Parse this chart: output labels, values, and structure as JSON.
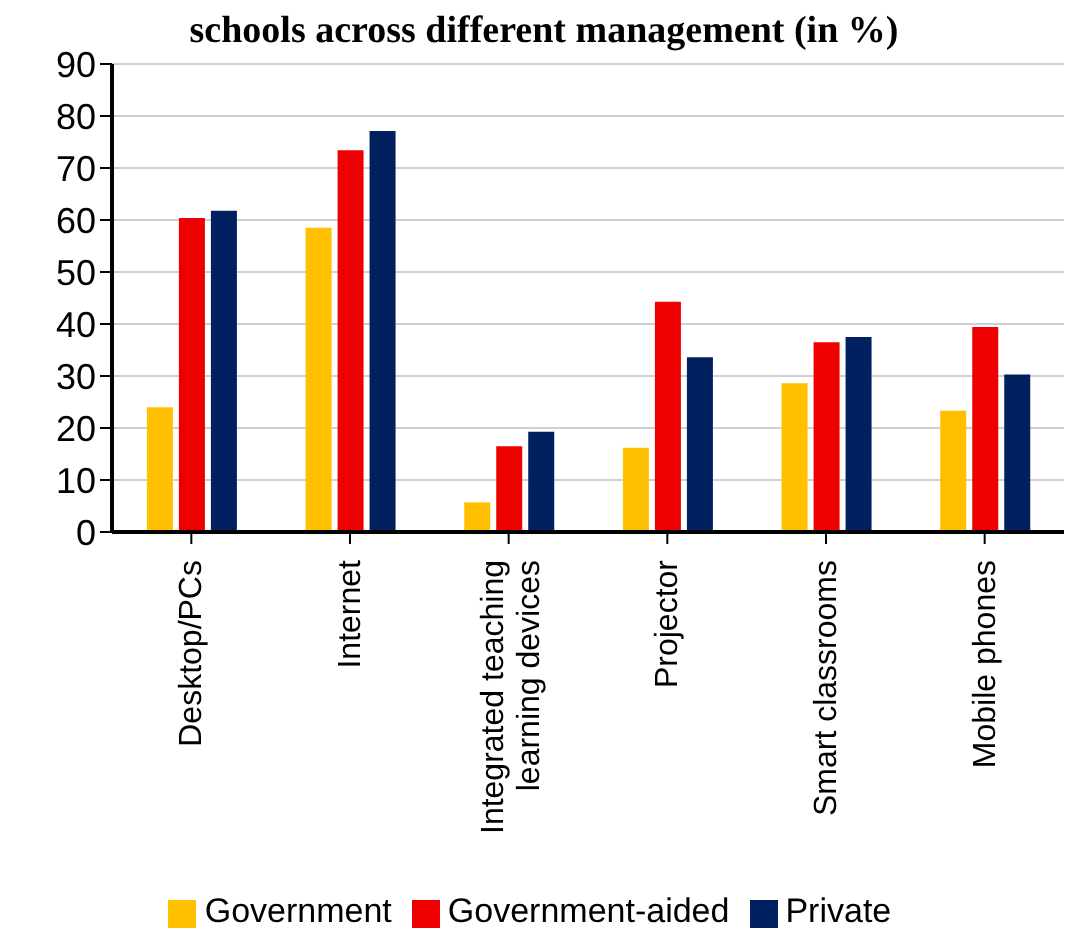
{
  "chart_data": {
    "type": "bar",
    "title": "schools across different management (in %)",
    "categories": [
      "Desktop/PCs",
      "Internet",
      "Integrated teaching learning devices",
      "Projector",
      "Smart classrooms",
      "Mobile phones"
    ],
    "series": [
      {
        "name": "Government",
        "color": "#ffc000",
        "values": [
          24,
          58.5,
          5.7,
          16.2,
          28.6,
          23.3
        ]
      },
      {
        "name": "Government-aided",
        "color": "#ee0000",
        "values": [
          60.4,
          73.4,
          16.5,
          44.3,
          36.5,
          39.4
        ]
      },
      {
        "name": "Private",
        "color": "#002060",
        "values": [
          61.8,
          77.1,
          19.3,
          33.6,
          37.5,
          30.3
        ]
      }
    ],
    "ylim": [
      0,
      90
    ],
    "yticks": [
      0,
      10,
      20,
      30,
      40,
      50,
      60,
      70,
      80,
      90
    ],
    "grid": "y",
    "legend": "bottom"
  }
}
